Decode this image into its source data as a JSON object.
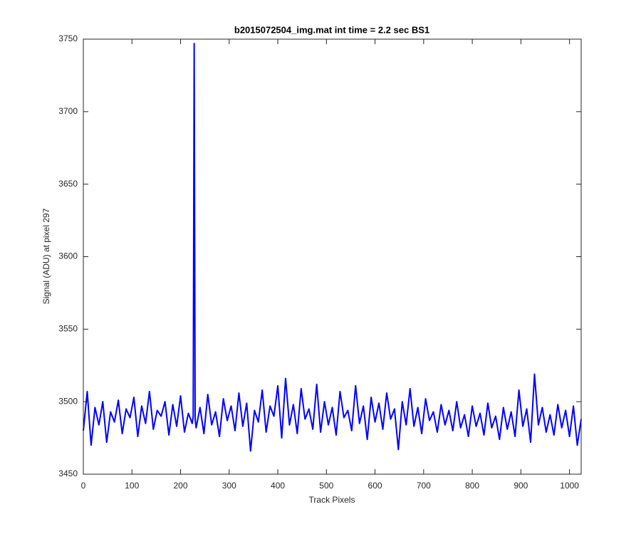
{
  "chart_data": {
    "type": "line",
    "title": "b2015072504_img.mat int time = 2.2 sec   BS1",
    "xlabel": "Track Pixels",
    "ylabel": "Signal (ADU) at pixel 297",
    "x": [
      0,
      8,
      16,
      24,
      32,
      40,
      48,
      56,
      64,
      72,
      80,
      88,
      96,
      104,
      112,
      120,
      128,
      136,
      144,
      152,
      160,
      168,
      176,
      184,
      192,
      200,
      208,
      216,
      224,
      226,
      228,
      230,
      232,
      240,
      248,
      256,
      264,
      272,
      280,
      288,
      296,
      304,
      312,
      320,
      328,
      336,
      344,
      352,
      360,
      368,
      376,
      384,
      392,
      400,
      408,
      416,
      424,
      432,
      440,
      448,
      456,
      464,
      472,
      480,
      488,
      496,
      504,
      512,
      520,
      528,
      536,
      544,
      552,
      560,
      568,
      576,
      584,
      592,
      600,
      608,
      616,
      624,
      632,
      640,
      648,
      656,
      664,
      672,
      680,
      688,
      696,
      704,
      712,
      720,
      728,
      736,
      744,
      752,
      760,
      768,
      776,
      784,
      792,
      800,
      808,
      816,
      824,
      832,
      840,
      848,
      856,
      864,
      872,
      880,
      888,
      896,
      904,
      912,
      920,
      928,
      936,
      944,
      952,
      960,
      968,
      976,
      984,
      992,
      1000,
      1008,
      1016,
      1024
    ],
    "series": [
      {
        "name": "signal",
        "color": "#0000ff",
        "values": [
          3480,
          3507,
          3470,
          3496,
          3484,
          3500,
          3472,
          3493,
          3486,
          3501,
          3478,
          3495,
          3489,
          3503,
          3476,
          3497,
          3485,
          3507,
          3481,
          3494,
          3490,
          3500,
          3477,
          3498,
          3483,
          3504,
          3479,
          3492,
          3485,
          3490,
          3747,
          3488,
          3482,
          3496,
          3478,
          3505,
          3484,
          3493,
          3476,
          3502,
          3487,
          3497,
          3480,
          3506,
          3483,
          3499,
          3466,
          3494,
          3486,
          3508,
          3479,
          3497,
          3490,
          3511,
          3475,
          3516,
          3484,
          3498,
          3478,
          3509,
          3488,
          3495,
          3481,
          3512,
          3479,
          3500,
          3484,
          3496,
          3477,
          3507,
          3489,
          3494,
          3480,
          3511,
          3485,
          3497,
          3474,
          3503,
          3486,
          3499,
          3481,
          3506,
          3488,
          3495,
          3467,
          3500,
          3484,
          3509,
          3483,
          3496,
          3478,
          3502,
          3487,
          3493,
          3479,
          3498,
          3484,
          3494,
          3480,
          3500,
          3482,
          3491,
          3476,
          3497,
          3483,
          3492,
          3477,
          3499,
          3482,
          3490,
          3474,
          3496,
          3481,
          3493,
          3476,
          3508,
          3483,
          3495,
          3472,
          3519,
          3484,
          3496,
          3479,
          3491,
          3477,
          3498,
          3482,
          3494,
          3476,
          3497,
          3470,
          3488
        ]
      }
    ],
    "xlim": [
      0,
      1024
    ],
    "ylim": [
      3450,
      3750
    ],
    "xticks": [
      0,
      100,
      200,
      300,
      400,
      500,
      600,
      700,
      800,
      900,
      1000
    ],
    "yticks": [
      3450,
      3500,
      3550,
      3600,
      3650,
      3700,
      3750
    ]
  }
}
